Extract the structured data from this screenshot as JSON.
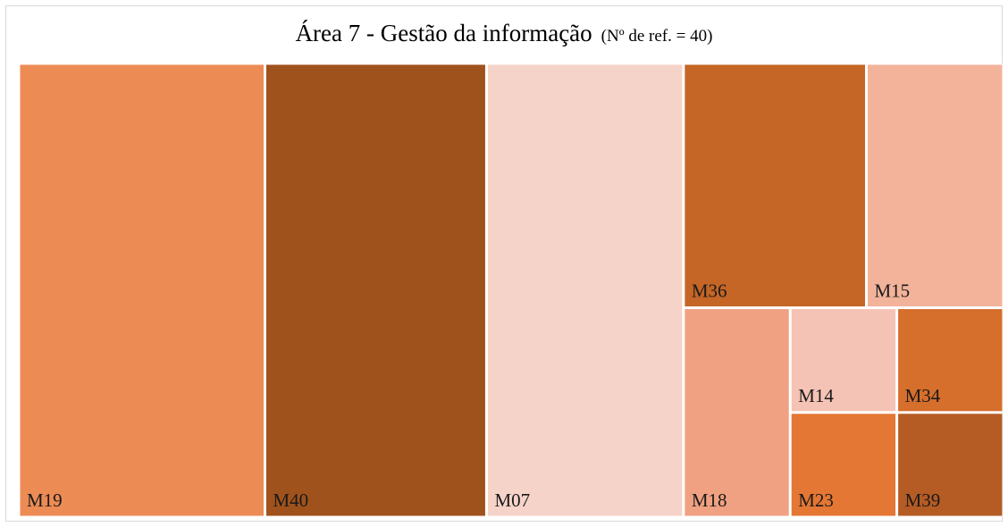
{
  "chart_data": {
    "type": "treemap",
    "title": "Área 7 - Gestão da informação",
    "subtitle": "(Nº de ref. = 40)",
    "categories": [
      "M19",
      "M40",
      "M07",
      "M36",
      "M15",
      "M18",
      "M14",
      "M23",
      "M34",
      "M39"
    ],
    "values": [
      10,
      9,
      8,
      4,
      3,
      2,
      1,
      1,
      1,
      1
    ],
    "colors": [
      "#ED8B55",
      "#A0521C",
      "#F6D3C8",
      "#C56526",
      "#F3B39B",
      "#F0A182",
      "#F5C3B5",
      "#E57734",
      "#D66E2C",
      "#B55B24"
    ]
  }
}
